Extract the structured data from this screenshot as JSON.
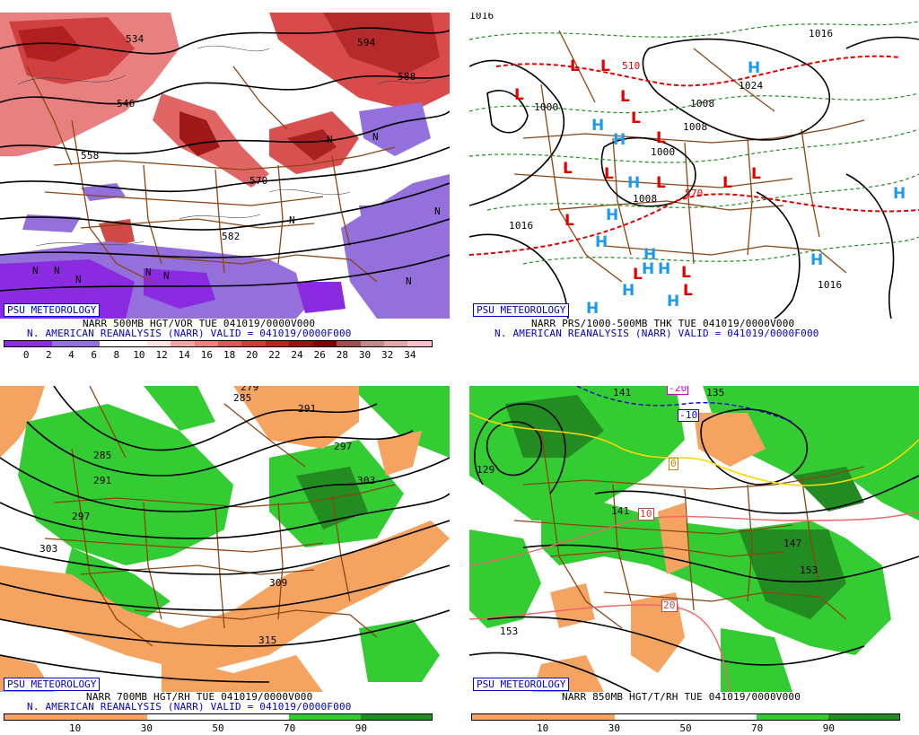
{
  "logo_text": "PSU METEOROLOGY",
  "panels": {
    "tl": {
      "line1": "NARR 500MB HGT/VOR TUE 041019/0000V000",
      "line2": "N. AMERICAN REANALYSIS (NARR) VALID = 041019/0000F000",
      "contour_labels": [
        "534",
        "546",
        "558",
        "570",
        "582",
        "558",
        "570",
        "594",
        "588"
      ],
      "vort_marks": [
        "N",
        "N",
        "N",
        "N",
        "N",
        "N",
        "N",
        "N",
        "N",
        "N"
      ],
      "colorbar_ticks": [
        "0",
        "2",
        "4",
        "6",
        "8",
        "10",
        "12",
        "14",
        "16",
        "18",
        "20",
        "22",
        "24",
        "26",
        "28",
        "30",
        "32",
        "34"
      ],
      "colorbar_colors": [
        "#8b2be2",
        "#8b2be2",
        "#9370db",
        "#9370db",
        "#ffffff",
        "#ffffff",
        "#ffe4e1",
        "#f4a6a6",
        "#f08080",
        "#e05555",
        "#d23a3a",
        "#c02020",
        "#a01010",
        "#800000",
        "#a05050",
        "#c08a8a",
        "#e0a8a8",
        "#ffc0cb"
      ]
    },
    "tr": {
      "line1": "NARR PRS/1000-500MB THK TUE 041019/0000V000",
      "line2": "N. AMERICAN REANALYSIS (NARR) VALID = 041019/0000F000",
      "pressure_labels": [
        "1016",
        "1016",
        "1000",
        "1008",
        "1000",
        "1008",
        "1016",
        "1024",
        "1016",
        "1016",
        "1008",
        "1008"
      ],
      "thk_labels": [
        "510",
        "570"
      ],
      "lows": [
        "L",
        "L",
        "L",
        "L",
        "L",
        "L",
        "L",
        "L",
        "L",
        "L",
        "L",
        "L",
        "L",
        "L",
        "L"
      ],
      "highs": [
        "H",
        "H",
        "H",
        "H",
        "H",
        "H",
        "H",
        "H",
        "H",
        "H",
        "H",
        "H",
        "H",
        "H"
      ]
    },
    "bl": {
      "line1": "NARR 700MB HGT/RH TUE 041019/0000V000",
      "line2": "N. AMERICAN REANALYSIS (NARR) VALID = 041019/0000F000",
      "contour_labels": [
        "279",
        "285",
        "291",
        "297",
        "303",
        "285",
        "291",
        "297",
        "303",
        "309",
        "315"
      ],
      "colorbar_ticks": [
        "10",
        "30",
        "50",
        "70",
        "90"
      ]
    },
    "br": {
      "line1": "NARR 850MB HGT/T/RH TUE 041019/0000V000",
      "contour_labels": [
        "129",
        "135",
        "141",
        "147",
        "153",
        "153",
        "141"
      ],
      "temp_labels": [
        "-10",
        "0",
        "10",
        "20",
        "-20"
      ],
      "colorbar_ticks": [
        "10",
        "30",
        "50",
        "70",
        "90"
      ]
    }
  },
  "rh_colors": [
    "#f4a460",
    "#f4a460",
    "#ffffff",
    "#ffffff",
    "#33cc33",
    "#228b22"
  ]
}
